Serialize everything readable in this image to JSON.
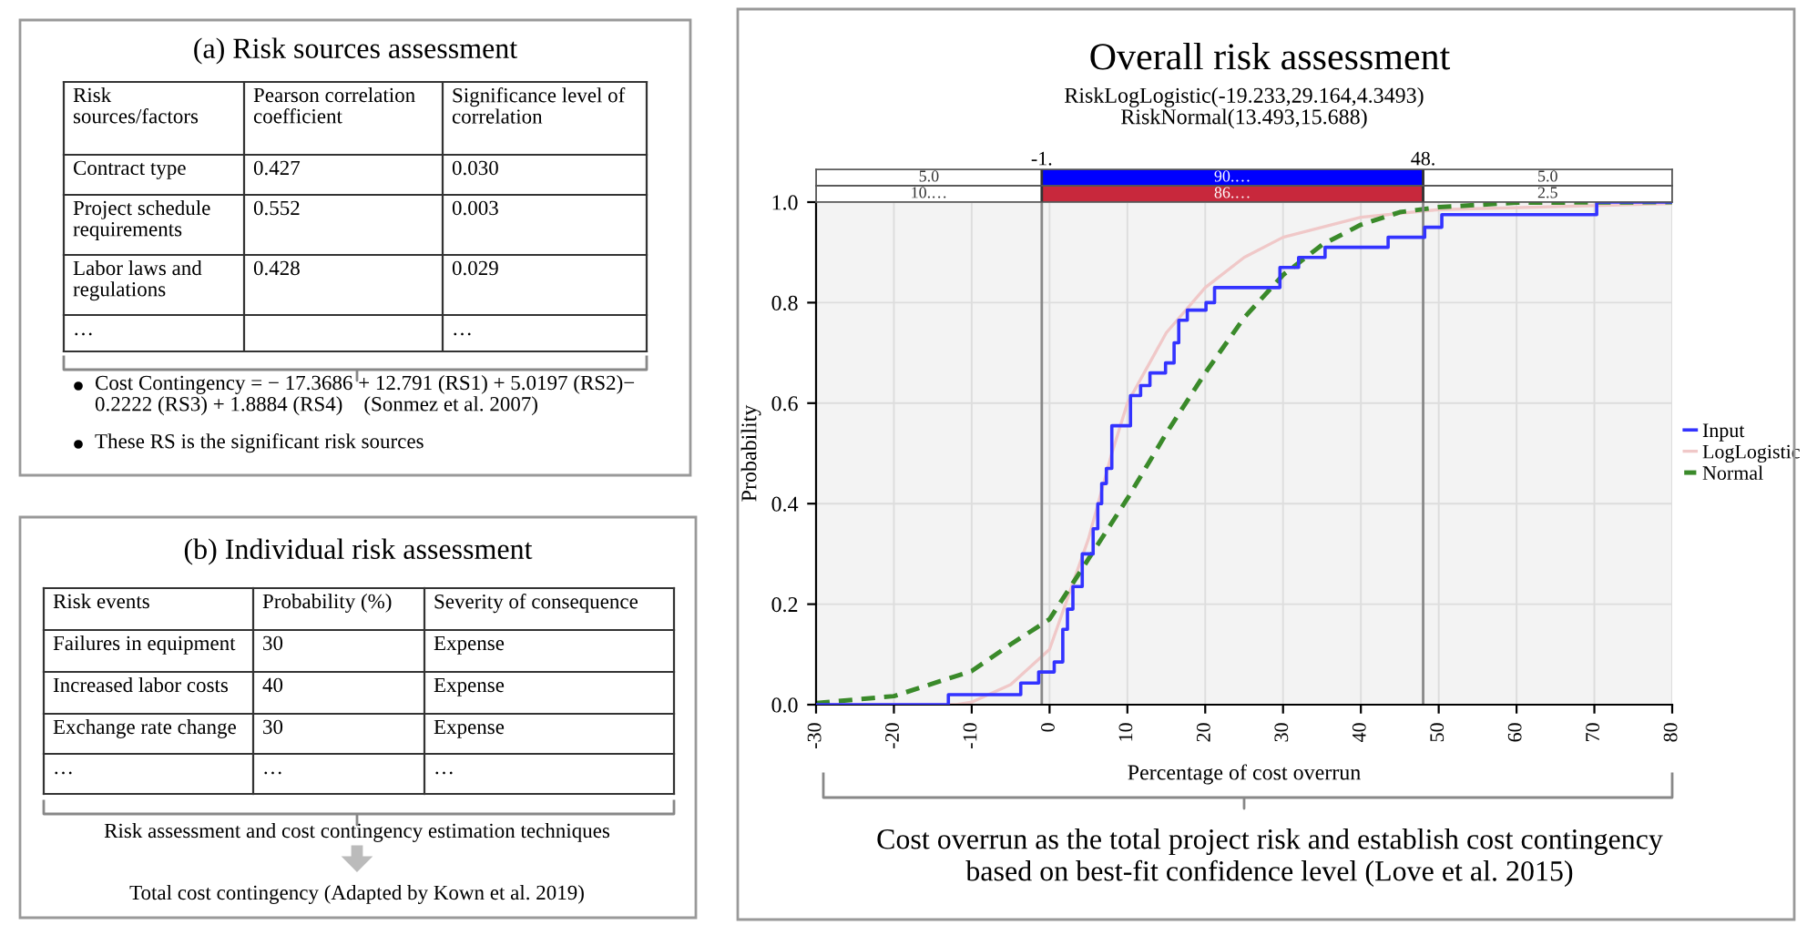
{
  "chart_data": [
    {
      "type": "other",
      "title": "(a) Risk sources assessment",
      "categories": [
        "Risk\nsources/factors",
        "Pearson correlation\ncoefficient",
        "Significance level of\ncorrelation"
      ],
      "cell_labels": [
        [
          "Contract type",
          "0.427",
          "0.030"
        ],
        [
          "Project schedule\nrequirements",
          "0.552",
          "0.003"
        ],
        [
          "Labor laws and\nregulations",
          "0.428",
          "0.029"
        ],
        [
          "…",
          null,
          "…"
        ]
      ],
      "annotations": [
        "Cost Contingency = − 17.3686 + 12.791 (RS1) + 5.0197 (RS2)−\n0.2222 (RS3) + 1.8884 (RS4)    (Sonmez et al. 2007)",
        "These RS is the significant risk sources"
      ]
    },
    {
      "type": "other",
      "title": "(b) Individual risk assessment",
      "categories": [
        "Risk events",
        "Probability (%)",
        "Severity of consequence"
      ],
      "cell_labels": [
        [
          "Failures in equipment",
          "30",
          "Expense"
        ],
        [
          "Increased labor costs",
          "40",
          "Expense"
        ],
        [
          "Exchange rate change",
          "30",
          "Expense"
        ],
        [
          "…",
          "…",
          "…"
        ]
      ],
      "annotations": [
        "Risk assessment and cost contingency estimation techniques",
        "Total cost contingency (Adapted by Kown et al. 2019)"
      ]
    },
    {
      "type": "line",
      "title": "Overall risk assessment",
      "subtitle": "RiskLogLogistic(-19.233,29.164,4.3493)\nRiskNormal(13.493,15.688)",
      "xlabel": "Percentage of cost overrun",
      "ylabel": "Probability",
      "xlim": [
        -30,
        80
      ],
      "xticks": [
        -30,
        -20,
        -10,
        0,
        10,
        20,
        30,
        40,
        50,
        60,
        70,
        80
      ],
      "ylim": [
        0,
        1
      ],
      "yticks": [
        {
          "value": 0,
          "label": "0.0"
        },
        {
          "value": 0.2,
          "label": "0.2"
        },
        {
          "value": 0.4,
          "label": "0.4"
        },
        {
          "value": 0.6,
          "label": "0.6"
        },
        {
          "value": 0.8,
          "label": "0.8"
        },
        {
          "value": 1,
          "label": "1.0"
        }
      ],
      "grid": true,
      "legend": "right",
      "series": [
        {
          "name": "Input",
          "type": "step",
          "color": "#3333ff",
          "x": [
            -30,
            -13,
            -3.7,
            -1.4,
            0.6,
            1.7,
            2.3,
            3.0,
            4.2,
            5.6,
            6.2,
            6.7,
            7.3,
            8.0,
            10.4,
            11.7,
            12.9,
            14.9,
            16.0,
            16.6,
            17.7,
            20.1,
            21.2,
            29.6,
            32.0,
            35.4,
            43.5,
            48.2,
            50.4,
            70.3,
            80
          ],
          "values": [
            0,
            0.02,
            0.043,
            0.065,
            0.085,
            0.15,
            0.19,
            0.235,
            0.3,
            0.35,
            0.4,
            0.44,
            0.47,
            0.555,
            0.615,
            0.635,
            0.66,
            0.68,
            0.72,
            0.765,
            0.785,
            0.8,
            0.83,
            0.87,
            0.89,
            0.91,
            0.93,
            0.95,
            0.975,
            1.0,
            1.0
          ]
        },
        {
          "name": "LogLogistic",
          "type": "line",
          "color": "#f0c8c8",
          "x": [
            -30,
            -12,
            -10,
            -5,
            0,
            5,
            8,
            10,
            15,
            20,
            25,
            30,
            40,
            50,
            80
          ],
          "values": [
            0,
            0,
            0.005,
            0.04,
            0.11,
            0.33,
            0.5,
            0.6,
            0.74,
            0.83,
            0.89,
            0.93,
            0.97,
            0.985,
            0.997
          ]
        },
        {
          "name": "Normal",
          "type": "line",
          "line_style": "dashed",
          "color": "#3a8a2a",
          "x": [
            -30,
            -20,
            -10,
            -5,
            0,
            5,
            10,
            15,
            20,
            25,
            30,
            35,
            40,
            45,
            50,
            60,
            80
          ],
          "values": [
            0.003,
            0.017,
            0.067,
            0.12,
            0.17,
            0.29,
            0.41,
            0.54,
            0.66,
            0.77,
            0.855,
            0.915,
            0.955,
            0.98,
            0.99,
            0.999,
            1.0
          ]
        }
      ],
      "ref_lines": [
        {
          "axis": "x",
          "value": -1,
          "label": "-1.",
          "color": "#888888"
        },
        {
          "axis": "x",
          "value": 48,
          "label": "48.",
          "color": "#888888"
        }
      ],
      "annotations": [
        "5.0",
        "90.…",
        "5.0",
        "10.…",
        "86.…",
        "2.5",
        "Cost overrun as the total project risk and establish cost contingency\nbased on best-fit confidence level (Love et al. 2015)"
      ]
    }
  ]
}
